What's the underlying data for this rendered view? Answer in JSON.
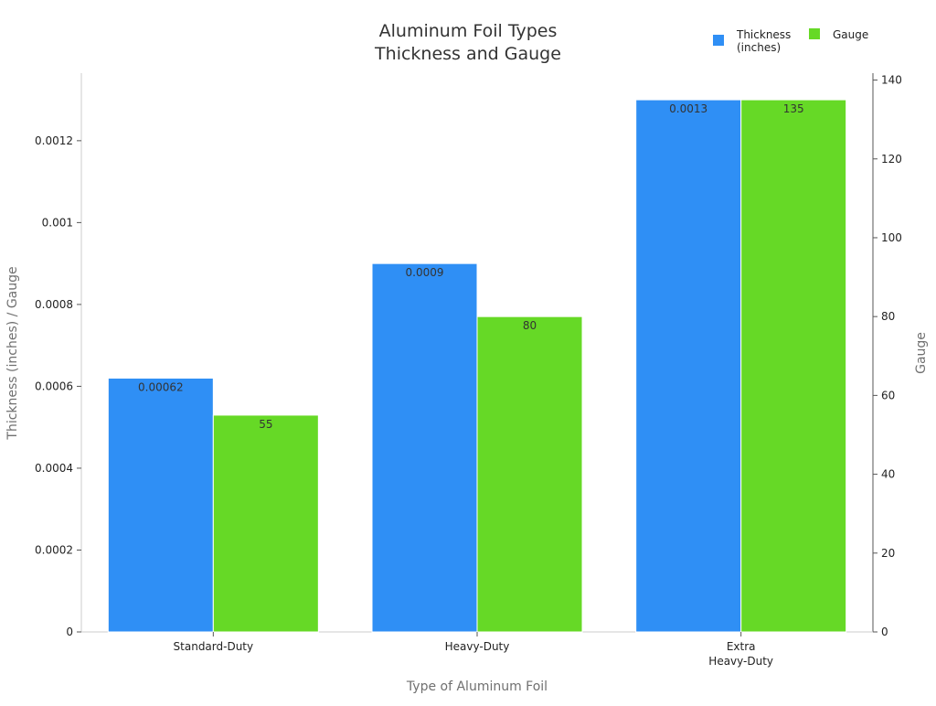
{
  "chart_data": {
    "type": "bar",
    "title_lines": [
      "Aluminum Foil Types",
      "Thickness and Gauge"
    ],
    "xlabel": "Type of Aluminum Foil",
    "ylabel_left": "Thickness (inches) / Gauge",
    "ylabel_right": "Gauge",
    "categories": [
      [
        "Standard-Duty"
      ],
      [
        "Heavy-Duty"
      ],
      [
        "Extra",
        "Heavy-Duty"
      ]
    ],
    "series": [
      {
        "name_lines": [
          "Thickness",
          "(inches)"
        ],
        "axis": "left",
        "color": "#2f8ff5",
        "values": [
          0.00062,
          0.0009,
          0.0013
        ],
        "labels": [
          "0.00062",
          "0.0009",
          "0.0013"
        ]
      },
      {
        "name_lines": [
          "Gauge"
        ],
        "axis": "right",
        "color": "#66d926",
        "values": [
          55,
          80,
          135
        ],
        "labels": [
          "55",
          "80",
          "135"
        ]
      }
    ],
    "y_left": {
      "ylim": [
        0,
        0.001365
      ],
      "ticks": [
        0,
        0.0002,
        0.0004,
        0.0006,
        0.0008,
        0.001,
        0.0012
      ],
      "tick_labels": [
        "0",
        "0.0002",
        "0.0004",
        "0.0006",
        "0.0008",
        "0.001",
        "0.0012"
      ]
    },
    "y_right": {
      "ylim": [
        0,
        141.75
      ],
      "ticks": [
        0,
        20,
        40,
        60,
        80,
        100,
        120,
        140
      ],
      "tick_labels": [
        "0",
        "20",
        "40",
        "60",
        "80",
        "100",
        "120",
        "140"
      ]
    },
    "grid": false,
    "legend_position": "top-right"
  }
}
